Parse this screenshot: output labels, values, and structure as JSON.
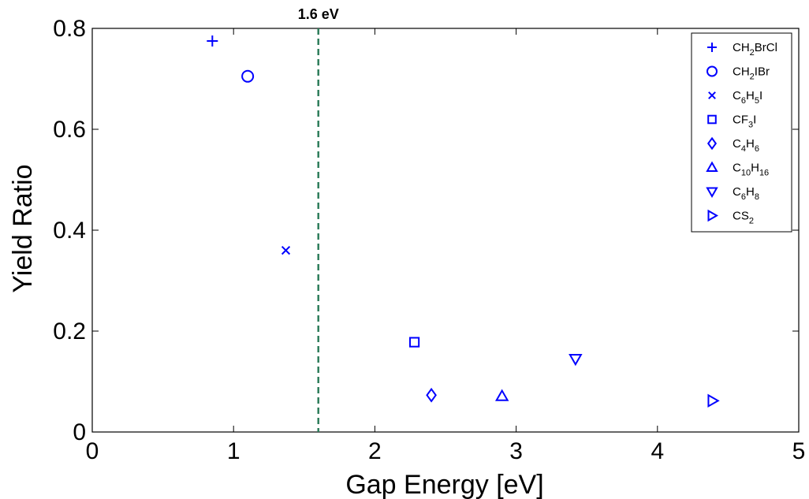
{
  "chart_data": {
    "type": "scatter",
    "title": "",
    "xlabel": "Gap Energy [eV]",
    "ylabel": "Yield Ratio",
    "xlim": [
      0,
      5
    ],
    "ylim": [
      0,
      0.8
    ],
    "xticks": [
      "0",
      "1",
      "2",
      "3",
      "4",
      "5"
    ],
    "yticks": [
      "0",
      "0.2",
      "0.4",
      "0.6",
      "0.8"
    ],
    "grid": false,
    "legend_position": "top-right",
    "color": "#0000ff",
    "annotation": {
      "label": "1.6 eV",
      "x": 1.6,
      "line_color": "#2e7d5b"
    },
    "series": [
      {
        "name": "CH2BrCl",
        "legend": [
          {
            "t": "CH"
          },
          {
            "t": "2",
            "sub": true
          },
          {
            "t": "BrCl"
          }
        ],
        "marker": "plus",
        "x": 0.85,
        "y": 0.775
      },
      {
        "name": "CH2IBr",
        "legend": [
          {
            "t": "CH"
          },
          {
            "t": "2",
            "sub": true
          },
          {
            "t": "IBr"
          }
        ],
        "marker": "circle",
        "x": 1.1,
        "y": 0.705
      },
      {
        "name": "C6H5I",
        "legend": [
          {
            "t": "C"
          },
          {
            "t": "6",
            "sub": true
          },
          {
            "t": "H"
          },
          {
            "t": "5",
            "sub": true
          },
          {
            "t": "I"
          }
        ],
        "marker": "x",
        "x": 1.37,
        "y": 0.36
      },
      {
        "name": "CF3I",
        "legend": [
          {
            "t": "CF"
          },
          {
            "t": "3",
            "sub": true
          },
          {
            "t": "I"
          }
        ],
        "marker": "square",
        "x": 2.28,
        "y": 0.178
      },
      {
        "name": "C4H6",
        "legend": [
          {
            "t": "C"
          },
          {
            "t": "4",
            "sub": true
          },
          {
            "t": "H"
          },
          {
            "t": "6",
            "sub": true
          }
        ],
        "marker": "diamond",
        "x": 2.4,
        "y": 0.073
      },
      {
        "name": "C10H16",
        "legend": [
          {
            "t": "C"
          },
          {
            "t": "10",
            "sub": true
          },
          {
            "t": "H"
          },
          {
            "t": "16",
            "sub": true
          }
        ],
        "marker": "triangle-up",
        "x": 2.9,
        "y": 0.071
      },
      {
        "name": "C6H8",
        "legend": [
          {
            "t": "C"
          },
          {
            "t": "6",
            "sub": true
          },
          {
            "t": "H"
          },
          {
            "t": "8",
            "sub": true
          }
        ],
        "marker": "triangle-down",
        "x": 3.42,
        "y": 0.145
      },
      {
        "name": "CS2",
        "legend": [
          {
            "t": "CS"
          },
          {
            "t": "2",
            "sub": true
          }
        ],
        "marker": "triangle-right",
        "x": 4.39,
        "y": 0.062
      }
    ]
  }
}
